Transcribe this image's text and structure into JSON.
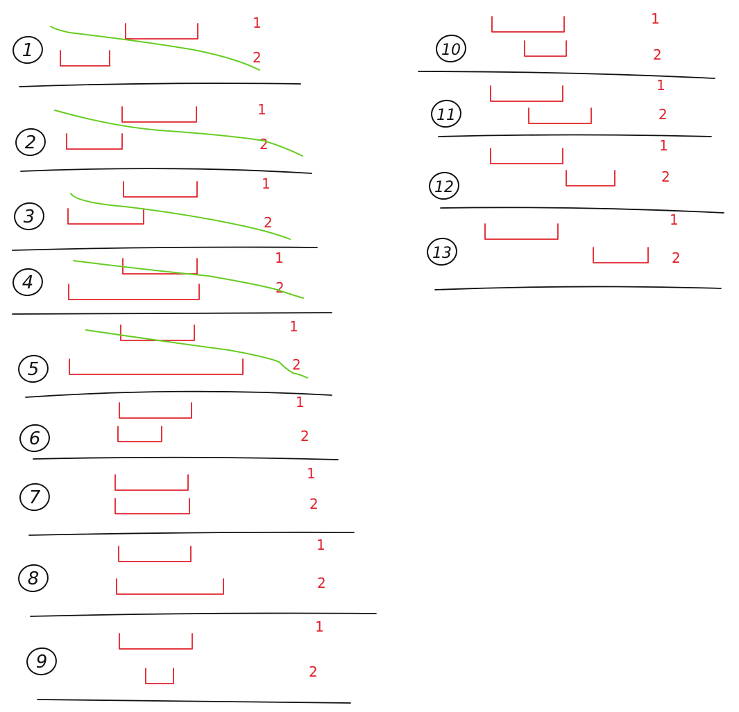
{
  "colors": {
    "ink": "#111111",
    "bracket": "#e0202a",
    "trend": "#66cc22"
  },
  "figures": [
    {
      "label": "1",
      "row1": "1",
      "row2": "2",
      "has_trend": true
    },
    {
      "label": "2",
      "row1": "1",
      "row2": "2",
      "has_trend": true
    },
    {
      "label": "3",
      "row1": "1",
      "row2": "2",
      "has_trend": true
    },
    {
      "label": "4",
      "row1": "1",
      "row2": "2",
      "has_trend": true
    },
    {
      "label": "5",
      "row1": "1",
      "row2": "2",
      "has_trend": true
    },
    {
      "label": "6",
      "row1": "1",
      "row2": "2",
      "has_trend": false
    },
    {
      "label": "7",
      "row1": "1",
      "row2": "2",
      "has_trend": false
    },
    {
      "label": "8",
      "row1": "1",
      "row2": "2",
      "has_trend": false
    },
    {
      "label": "9",
      "row1": "1",
      "row2": "2",
      "has_trend": false
    },
    {
      "label": "10",
      "row1": "1",
      "row2": "2",
      "has_trend": false
    },
    {
      "label": "11",
      "row1": "1",
      "row2": "2",
      "has_trend": false
    },
    {
      "label": "12",
      "row1": "1",
      "row2": "2",
      "has_trend": false
    },
    {
      "label": "13",
      "row1": "1",
      "row2": "2",
      "has_trend": false
    }
  ]
}
